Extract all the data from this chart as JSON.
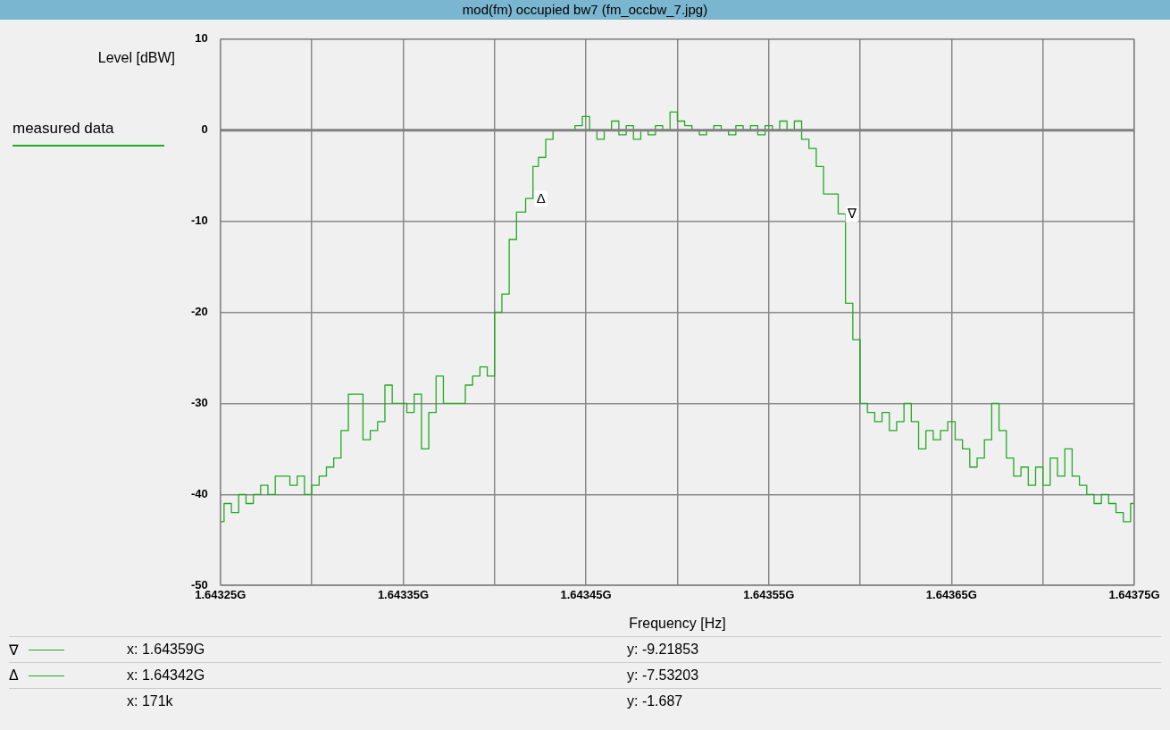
{
  "chart_data": {
    "type": "step",
    "title": "mod(fm) occupied bw7 (fm_occbw_7.jpg)",
    "xlabel": "Frequency [Hz]",
    "ylabel": "Level [dBW]",
    "x": [
      1.64325,
      1.643254,
      1.643258,
      1.643262,
      1.643266,
      1.64327,
      1.643274,
      1.643278,
      1.643282,
      1.643286,
      1.64329,
      1.643294,
      1.643298,
      1.643302,
      1.643306,
      1.64331,
      1.643314,
      1.643318,
      1.643322,
      1.643326,
      1.64333,
      1.643334,
      1.643338,
      1.643342,
      1.643346,
      1.64335,
      1.643354,
      1.643358,
      1.643362,
      1.643366,
      1.64337,
      1.643374,
      1.643378,
      1.643382,
      1.643386,
      1.64339,
      1.643394,
      1.643398,
      1.643402,
      1.643406,
      1.64341,
      1.643414,
      1.64342,
      1.643422,
      1.643426,
      1.64343,
      1.643434,
      1.643438,
      1.643442,
      1.643446,
      1.64345,
      1.643454,
      1.643458,
      1.643462,
      1.643466,
      1.64347,
      1.643474,
      1.643478,
      1.643482,
      1.643486,
      1.64349,
      1.643494,
      1.643498,
      1.643502,
      1.643506,
      1.64351,
      1.643514,
      1.643518,
      1.643522,
      1.643526,
      1.64353,
      1.643534,
      1.643538,
      1.643542,
      1.643546,
      1.64355,
      1.643554,
      1.643558,
      1.643562,
      1.643566,
      1.64357,
      1.643574,
      1.643578,
      1.643582,
      1.643586,
      1.64359,
      1.643594,
      1.643598,
      1.643602,
      1.643606,
      1.64361,
      1.643614,
      1.643618,
      1.643622,
      1.643626,
      1.64363,
      1.643634,
      1.643638,
      1.643642,
      1.643646,
      1.64365,
      1.643654,
      1.643658,
      1.643662,
      1.643666,
      1.64367,
      1.643674,
      1.643678,
      1.643682,
      1.643686,
      1.64369,
      1.643694,
      1.643698,
      1.643702,
      1.643706,
      1.64371,
      1.643714,
      1.643718,
      1.643722,
      1.643726,
      1.64373,
      1.643734,
      1.643738,
      1.643742,
      1.643746,
      1.64375
    ],
    "series": [
      {
        "name": "measured data",
        "color": "#22aa22",
        "values": [
          -43,
          -41,
          -42,
          -40,
          -41,
          -40,
          -39,
          -40,
          -38,
          -38,
          -39,
          -38,
          -40,
          -39,
          -38,
          -37,
          -36,
          -33,
          -29,
          -29,
          -34,
          -33,
          -32,
          -28,
          -30,
          -30,
          -31,
          -29,
          -35,
          -31,
          -27,
          -30,
          -30,
          -30,
          -28,
          -27,
          -26,
          -27,
          -20,
          -18,
          -12,
          -9,
          -7.5,
          -4,
          -3,
          -1,
          0,
          0,
          0,
          0.5,
          1.5,
          0,
          -1,
          0,
          1,
          -0.5,
          0.5,
          -1,
          0,
          -0.5,
          0.5,
          0,
          2,
          1,
          0.5,
          0,
          -0.5,
          0,
          0.5,
          0,
          -0.5,
          0.5,
          0,
          0.5,
          -0.5,
          0.5,
          0,
          1,
          0,
          1,
          -1,
          -2,
          -4,
          -7,
          -7,
          -9.2,
          -19,
          -23,
          -30,
          -31,
          -32,
          -31,
          -33,
          -32,
          -30,
          -32,
          -35,
          -33,
          -34,
          -33,
          -32,
          -34,
          -35,
          -37,
          -36,
          -34,
          -30,
          -33,
          -36,
          -38,
          -37,
          -39,
          -37,
          -39,
          -36,
          -38,
          -35,
          -38,
          -39,
          -40,
          -41,
          -40,
          -41,
          -42,
          -43,
          -41
        ]
      }
    ],
    "xlim": [
      1.64325,
      1.64375
    ],
    "xticks": [
      {
        "value": 1.64325,
        "label": "1.64325G"
      },
      {
        "value": 1.6433,
        "label": null
      },
      {
        "value": 1.64335,
        "label": "1.64335G"
      },
      {
        "value": 1.6434,
        "label": null
      },
      {
        "value": 1.64345,
        "label": "1.64345G"
      },
      {
        "value": 1.6435,
        "label": null
      },
      {
        "value": 1.64355,
        "label": "1.64355G"
      },
      {
        "value": 1.6436,
        "label": null
      },
      {
        "value": 1.64365,
        "label": "1.64365G"
      },
      {
        "value": 1.6437,
        "label": null
      },
      {
        "value": 1.64375,
        "label": "1.64375G"
      }
    ],
    "ylim": [
      -50,
      10
    ],
    "yticks": [
      -50,
      -40,
      -30,
      -20,
      -10,
      0,
      10
    ],
    "grid": true,
    "legend": "left",
    "ref_lines": [
      {
        "axis": "y",
        "value": 0,
        "color": "#808080"
      }
    ],
    "annotations": [
      {
        "text": "∇",
        "x": 1.64359,
        "y": -9.21853
      },
      {
        "text": "Δ",
        "x": 1.64342,
        "y": -7.53203
      },
      "x: 1.64359G",
      "y: -9.21853",
      "x: 1.64342G",
      "y: -7.53203",
      "x: 171k",
      "y: -1.687"
    ]
  }
}
